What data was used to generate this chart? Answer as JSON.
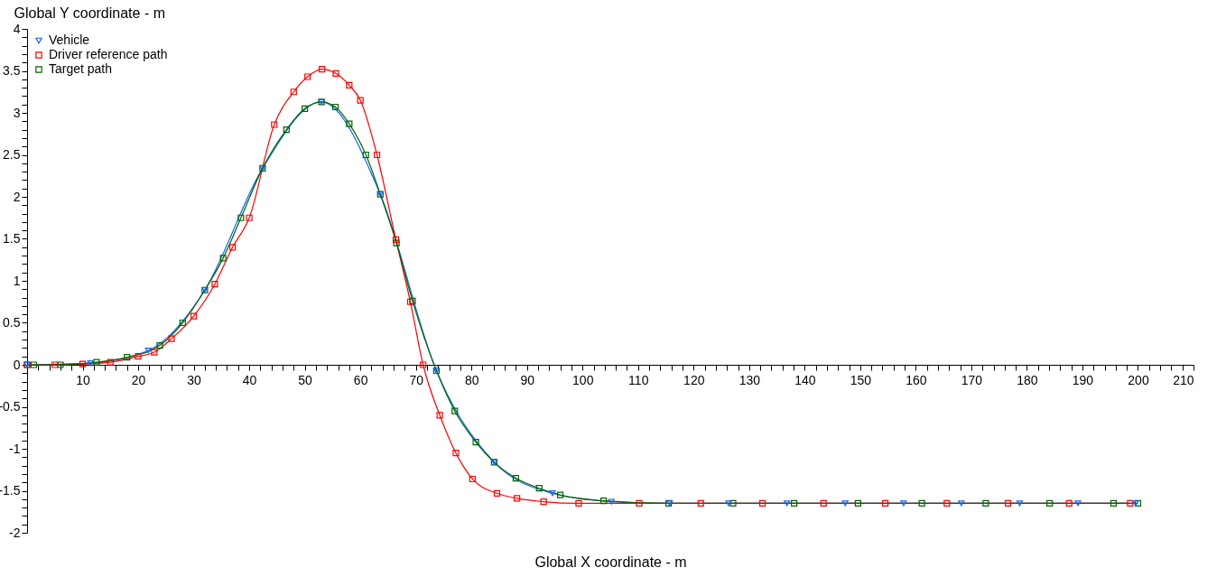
{
  "chart_data": {
    "type": "line",
    "xlabel": "Global X coordinate - m",
    "ylabel": "Global Y coordinate - m",
    "legend": "top left",
    "grid": false,
    "line_style": "solid",
    "xlim": [
      0,
      210
    ],
    "ylim": [
      -2,
      4
    ],
    "xticks": [
      {
        "value": 0,
        "label": null
      },
      {
        "value": 2,
        "label": null
      },
      {
        "value": 4,
        "label": null
      },
      {
        "value": 6,
        "label": null
      },
      {
        "value": 8,
        "label": null
      },
      10,
      {
        "value": 12,
        "label": null
      },
      {
        "value": 14,
        "label": null
      },
      {
        "value": 16,
        "label": null
      },
      {
        "value": 18,
        "label": null
      },
      20,
      {
        "value": 22,
        "label": null
      },
      {
        "value": 24,
        "label": null
      },
      {
        "value": 26,
        "label": null
      },
      {
        "value": 28,
        "label": null
      },
      30,
      {
        "value": 32,
        "label": null
      },
      {
        "value": 34,
        "label": null
      },
      {
        "value": 36,
        "label": null
      },
      {
        "value": 38,
        "label": null
      },
      40,
      {
        "value": 42,
        "label": null
      },
      {
        "value": 44,
        "label": null
      },
      {
        "value": 46,
        "label": null
      },
      {
        "value": 48,
        "label": null
      },
      50,
      {
        "value": 52,
        "label": null
      },
      {
        "value": 54,
        "label": null
      },
      {
        "value": 56,
        "label": null
      },
      {
        "value": 58,
        "label": null
      },
      60,
      {
        "value": 62,
        "label": null
      },
      {
        "value": 64,
        "label": null
      },
      {
        "value": 66,
        "label": null
      },
      {
        "value": 68,
        "label": null
      },
      70,
      {
        "value": 72,
        "label": null
      },
      {
        "value": 74,
        "label": null
      },
      {
        "value": 76,
        "label": null
      },
      {
        "value": 78,
        "label": null
      },
      80,
      {
        "value": 82,
        "label": null
      },
      {
        "value": 84,
        "label": null
      },
      {
        "value": 86,
        "label": null
      },
      {
        "value": 88,
        "label": null
      },
      90,
      {
        "value": 92,
        "label": null
      },
      {
        "value": 94,
        "label": null
      },
      {
        "value": 96,
        "label": null
      },
      {
        "value": 98,
        "label": null
      },
      100,
      {
        "value": 102,
        "label": null
      },
      {
        "value": 104,
        "label": null
      },
      {
        "value": 106,
        "label": null
      },
      {
        "value": 108,
        "label": null
      },
      110,
      {
        "value": 112,
        "label": null
      },
      {
        "value": 114,
        "label": null
      },
      {
        "value": 116,
        "label": null
      },
      {
        "value": 118,
        "label": null
      },
      120,
      {
        "value": 122,
        "label": null
      },
      {
        "value": 124,
        "label": null
      },
      {
        "value": 126,
        "label": null
      },
      {
        "value": 128,
        "label": null
      },
      130,
      {
        "value": 132,
        "label": null
      },
      {
        "value": 134,
        "label": null
      },
      {
        "value": 136,
        "label": null
      },
      {
        "value": 138,
        "label": null
      },
      140,
      {
        "value": 142,
        "label": null
      },
      {
        "value": 144,
        "label": null
      },
      {
        "value": 146,
        "label": null
      },
      {
        "value": 148,
        "label": null
      },
      150,
      {
        "value": 152,
        "label": null
      },
      {
        "value": 154,
        "label": null
      },
      {
        "value": 156,
        "label": null
      },
      {
        "value": 158,
        "label": null
      },
      160,
      {
        "value": 162,
        "label": null
      },
      {
        "value": 164,
        "label": null
      },
      {
        "value": 166,
        "label": null
      },
      {
        "value": 168,
        "label": null
      },
      170,
      {
        "value": 172,
        "label": null
      },
      {
        "value": 174,
        "label": null
      },
      {
        "value": 176,
        "label": null
      },
      {
        "value": 178,
        "label": null
      },
      180,
      {
        "value": 182,
        "label": null
      },
      {
        "value": 184,
        "label": null
      },
      {
        "value": 186,
        "label": null
      },
      {
        "value": 188,
        "label": null
      },
      190,
      {
        "value": 192,
        "label": null
      },
      {
        "value": 194,
        "label": null
      },
      {
        "value": 196,
        "label": null
      },
      {
        "value": 198,
        "label": null
      },
      200,
      {
        "value": 202,
        "label": null
      },
      {
        "value": 204,
        "label": null
      },
      {
        "value": 206,
        "label": null
      },
      {
        "value": 208,
        "label": null
      },
      210
    ],
    "yticks": [
      -2,
      {
        "value": -1.9,
        "label": null
      },
      {
        "value": -1.8,
        "label": null
      },
      {
        "value": -1.7,
        "label": null
      },
      {
        "value": -1.6,
        "label": null
      },
      -1.5,
      {
        "value": -1.4,
        "label": null
      },
      {
        "value": -1.3,
        "label": null
      },
      {
        "value": -1.2,
        "label": null
      },
      {
        "value": -1.1,
        "label": null
      },
      -1,
      {
        "value": -0.9,
        "label": null
      },
      {
        "value": -0.8,
        "label": null
      },
      {
        "value": -0.7,
        "label": null
      },
      {
        "value": -0.6,
        "label": null
      },
      -0.5,
      {
        "value": -0.4,
        "label": null
      },
      {
        "value": -0.3,
        "label": null
      },
      {
        "value": -0.2,
        "label": null
      },
      {
        "value": -0.1,
        "label": null
      },
      0,
      {
        "value": 0.1,
        "label": null
      },
      {
        "value": 0.2,
        "label": null
      },
      {
        "value": 0.3,
        "label": null
      },
      {
        "value": 0.4,
        "label": null
      },
      0.5,
      {
        "value": 0.6,
        "label": null
      },
      {
        "value": 0.7,
        "label": null
      },
      {
        "value": 0.8,
        "label": null
      },
      {
        "value": 0.9,
        "label": null
      },
      1,
      {
        "value": 1.1,
        "label": null
      },
      {
        "value": 1.2,
        "label": null
      },
      {
        "value": 1.3,
        "label": null
      },
      {
        "value": 1.4,
        "label": null
      },
      1.5,
      {
        "value": 1.6,
        "label": null
      },
      {
        "value": 1.7,
        "label": null
      },
      {
        "value": 1.8,
        "label": null
      },
      {
        "value": 1.9,
        "label": null
      },
      2,
      {
        "value": 2.1,
        "label": null
      },
      {
        "value": 2.2,
        "label": null
      },
      {
        "value": 2.3,
        "label": null
      },
      {
        "value": 2.4,
        "label": null
      },
      2.5,
      {
        "value": 2.6,
        "label": null
      },
      {
        "value": 2.7,
        "label": null
      },
      {
        "value": 2.8,
        "label": null
      },
      {
        "value": 2.9,
        "label": null
      },
      3,
      {
        "value": 3.1,
        "label": null
      },
      {
        "value": 3.2,
        "label": null
      },
      {
        "value": 3.3,
        "label": null
      },
      {
        "value": 3.4,
        "label": null
      },
      3.5,
      {
        "value": 3.6,
        "label": null
      },
      {
        "value": 3.7,
        "label": null
      },
      {
        "value": 3.8,
        "label": null
      },
      {
        "value": 3.9,
        "label": null
      },
      4
    ],
    "series": [
      {
        "name": "Vehicle",
        "color": "#1464ff",
        "marker": "triangle",
        "x": [
          0,
          11.4,
          21.8,
          32,
          42.4,
          53,
          63.6,
          73.7,
          84.1,
          94.6,
          105.2,
          115.7,
          126.3,
          136.8,
          147.3,
          157.8,
          168.2,
          178.7,
          189.2,
          199.6
        ],
        "values": [
          0,
          0.02,
          0.17,
          0.89,
          2.34,
          3.13,
          2.03,
          -0.07,
          -1.16,
          -1.53,
          -1.63,
          -1.65,
          -1.65,
          -1.65,
          -1.65,
          -1.65,
          -1.65,
          -1.65,
          -1.65,
          -1.65
        ]
      },
      {
        "name": "Driver reference path",
        "color": "#ff0000",
        "marker": "square",
        "x": [
          0,
          5,
          10,
          15,
          20,
          22.9,
          26,
          30,
          33.8,
          37,
          40,
          44.5,
          48,
          50.5,
          53.1,
          55.6,
          58,
          60,
          63,
          66.4,
          69,
          71.3,
          74.3,
          77.2,
          80.2,
          84.6,
          88.2,
          93,
          99.3,
          110.2,
          121.3,
          132.4,
          143.4,
          154.5,
          165.6,
          176.6,
          187.6,
          198.6
        ],
        "values": [
          0,
          0,
          0.01,
          0.03,
          0.1,
          0.15,
          0.31,
          0.58,
          0.96,
          1.4,
          1.75,
          2.86,
          3.25,
          3.43,
          3.52,
          3.47,
          3.33,
          3.15,
          2.5,
          1.49,
          0.75,
          0,
          -0.6,
          -1.05,
          -1.36,
          -1.53,
          -1.59,
          -1.63,
          -1.65,
          -1.65,
          -1.65,
          -1.65,
          -1.65,
          -1.65,
          -1.65,
          -1.65,
          -1.65,
          -1.65
        ]
      },
      {
        "name": "Target path",
        "color": "#006400",
        "marker": "square",
        "x": [
          0,
          1.2,
          6,
          12.5,
          18,
          23.9,
          28,
          32,
          35.3,
          38.5,
          42.4,
          46.7,
          50,
          53,
          55.5,
          58,
          61,
          63.6,
          66.5,
          69.4,
          73.7,
          77,
          80.8,
          84.1,
          88,
          92.2,
          96,
          103.8,
          115.5,
          127.1,
          138.1,
          149.6,
          161.1,
          172.6,
          184.1,
          195.6,
          200
        ],
        "values": [
          0,
          0,
          0,
          0.03,
          0.09,
          0.23,
          0.5,
          0.89,
          1.27,
          1.75,
          2.34,
          2.8,
          3.05,
          3.13,
          3.07,
          2.87,
          2.5,
          2.03,
          1.45,
          0.76,
          -0.07,
          -0.55,
          -0.92,
          -1.16,
          -1.35,
          -1.47,
          -1.55,
          -1.62,
          -1.65,
          -1.65,
          -1.65,
          -1.65,
          -1.65,
          -1.65,
          -1.65,
          -1.65,
          -1.65
        ]
      }
    ]
  }
}
